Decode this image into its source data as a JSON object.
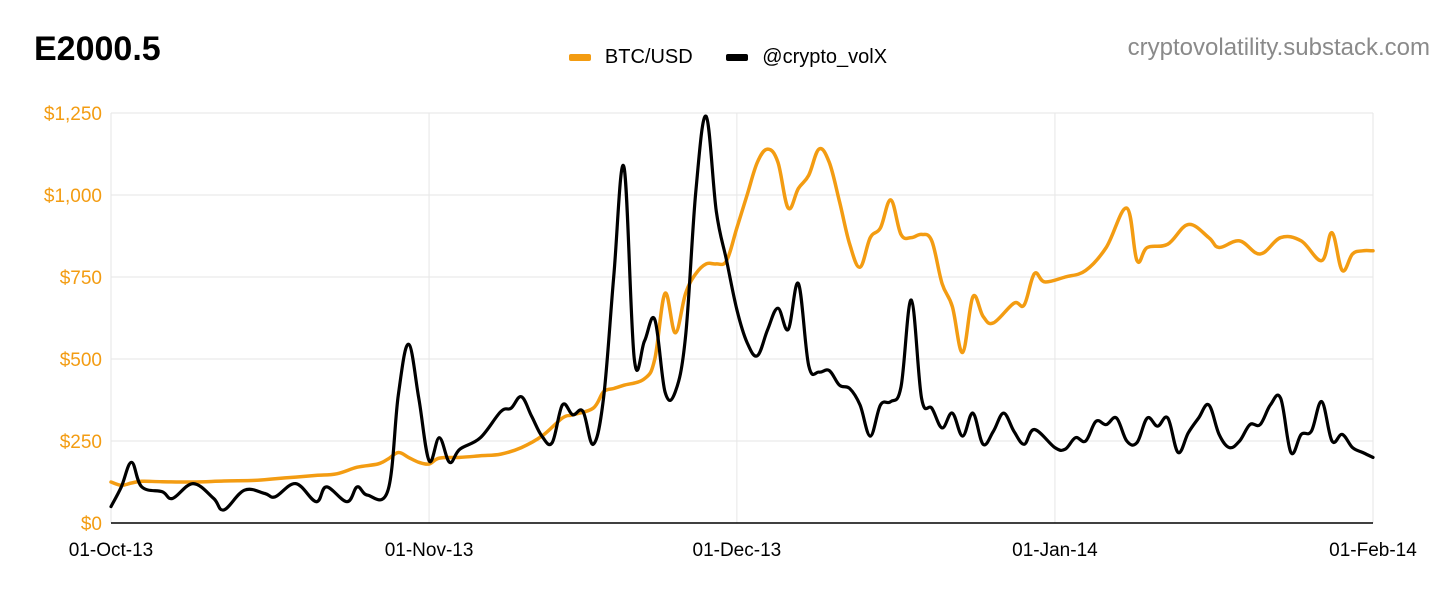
{
  "header": {
    "title": "E2000.5",
    "watermark": "cryptovolatility.substack.com"
  },
  "colors": {
    "btc": "#f39c12",
    "vol": "#000000",
    "grid": "#e6e6e6",
    "ytick": "#f39c12"
  },
  "chart_data": {
    "type": "line",
    "title": "E2000.5",
    "x_start": "2013-10-01",
    "x_end": "2014-02-01",
    "ylim": [
      0,
      1250
    ],
    "yticks": [
      0,
      250,
      500,
      750,
      1000,
      1250
    ],
    "ytick_labels": [
      "$0",
      "$250",
      "$500",
      "$750",
      "$1,000",
      "$1,250"
    ],
    "xtick_dates": [
      "2013-10-01",
      "2013-11-01",
      "2013-12-01",
      "2014-01-01",
      "2014-02-01"
    ],
    "xtick_labels": [
      "01-Oct-13",
      "01-Nov-13",
      "01-Dec-13",
      "01-Jan-14",
      "01-Feb-14"
    ],
    "grid": true,
    "legend_position": "top-center",
    "series": [
      {
        "name": "BTC/USD",
        "color": "#f39c12",
        "points": [
          [
            "2013-10-01",
            125
          ],
          [
            "2013-10-02",
            115
          ],
          [
            "2013-10-03",
            122
          ],
          [
            "2013-10-04",
            127
          ],
          [
            "2013-10-06",
            126
          ],
          [
            "2013-10-09",
            125
          ],
          [
            "2013-10-12",
            128
          ],
          [
            "2013-10-15",
            130
          ],
          [
            "2013-10-17",
            135
          ],
          [
            "2013-10-19",
            140
          ],
          [
            "2013-10-21",
            145
          ],
          [
            "2013-10-23",
            150
          ],
          [
            "2013-10-25",
            170
          ],
          [
            "2013-10-27",
            180
          ],
          [
            "2013-10-28",
            195
          ],
          [
            "2013-10-29",
            215
          ],
          [
            "2013-10-30",
            200
          ],
          [
            "2013-10-31",
            185
          ],
          [
            "2013-11-01",
            180
          ],
          [
            "2013-11-02",
            198
          ],
          [
            "2013-11-04",
            200
          ],
          [
            "2013-11-06",
            205
          ],
          [
            "2013-11-08",
            210
          ],
          [
            "2013-11-10",
            230
          ],
          [
            "2013-11-12",
            265
          ],
          [
            "2013-11-14",
            320
          ],
          [
            "2013-11-15",
            330
          ],
          [
            "2013-11-17",
            350
          ],
          [
            "2013-11-18",
            400
          ],
          [
            "2013-11-19",
            410
          ],
          [
            "2013-11-20",
            420
          ],
          [
            "2013-11-22",
            440
          ],
          [
            "2013-11-23",
            500
          ],
          [
            "2013-11-24",
            700
          ],
          [
            "2013-11-25",
            580
          ],
          [
            "2013-11-26",
            700
          ],
          [
            "2013-11-27",
            760
          ],
          [
            "2013-11-28",
            790
          ],
          [
            "2013-11-29",
            790
          ],
          [
            "2013-11-30",
            800
          ],
          [
            "2013-12-01",
            900
          ],
          [
            "2013-12-02",
            1000
          ],
          [
            "2013-12-03",
            1100
          ],
          [
            "2013-12-04",
            1140
          ],
          [
            "2013-12-05",
            1100
          ],
          [
            "2013-12-06",
            960
          ],
          [
            "2013-12-07",
            1020
          ],
          [
            "2013-12-08",
            1060
          ],
          [
            "2013-12-09",
            1140
          ],
          [
            "2013-12-10",
            1100
          ],
          [
            "2013-12-11",
            980
          ],
          [
            "2013-12-12",
            850
          ],
          [
            "2013-12-13",
            780
          ],
          [
            "2013-12-14",
            870
          ],
          [
            "2013-12-15",
            900
          ],
          [
            "2013-12-16",
            985
          ],
          [
            "2013-12-17",
            880
          ],
          [
            "2013-12-18",
            870
          ],
          [
            "2013-12-19",
            880
          ],
          [
            "2013-12-20",
            860
          ],
          [
            "2013-12-21",
            730
          ],
          [
            "2013-12-22",
            660
          ],
          [
            "2013-12-23",
            520
          ],
          [
            "2013-12-24",
            690
          ],
          [
            "2013-12-25",
            630
          ],
          [
            "2013-12-26",
            610
          ],
          [
            "2013-12-28",
            670
          ],
          [
            "2013-12-29",
            665
          ],
          [
            "2013-12-30",
            760
          ],
          [
            "2013-12-31",
            735
          ],
          [
            "2014-01-02",
            750
          ],
          [
            "2014-01-04",
            770
          ],
          [
            "2014-01-06",
            840
          ],
          [
            "2014-01-08",
            960
          ],
          [
            "2014-01-09",
            800
          ],
          [
            "2014-01-10",
            840
          ],
          [
            "2014-01-12",
            850
          ],
          [
            "2014-01-14",
            910
          ],
          [
            "2014-01-16",
            870
          ],
          [
            "2014-01-17",
            840
          ],
          [
            "2014-01-19",
            860
          ],
          [
            "2014-01-21",
            820
          ],
          [
            "2014-01-23",
            870
          ],
          [
            "2014-01-25",
            860
          ],
          [
            "2014-01-27",
            800
          ],
          [
            "2014-01-28",
            885
          ],
          [
            "2014-01-29",
            770
          ],
          [
            "2014-01-30",
            820
          ],
          [
            "2014-01-31",
            830
          ],
          [
            "2014-02-01",
            830
          ]
        ]
      },
      {
        "name": "@crypto_volX",
        "color": "#000000",
        "points": [
          [
            "2013-10-01",
            50
          ],
          [
            "2013-10-02",
            110
          ],
          [
            "2013-10-03",
            185
          ],
          [
            "2013-10-04",
            110
          ],
          [
            "2013-10-06",
            95
          ],
          [
            "2013-10-07",
            75
          ],
          [
            "2013-10-09",
            120
          ],
          [
            "2013-10-11",
            75
          ],
          [
            "2013-10-12",
            40
          ],
          [
            "2013-10-14",
            100
          ],
          [
            "2013-10-16",
            90
          ],
          [
            "2013-10-17",
            80
          ],
          [
            "2013-10-19",
            120
          ],
          [
            "2013-10-21",
            65
          ],
          [
            "2013-10-22",
            110
          ],
          [
            "2013-10-24",
            65
          ],
          [
            "2013-10-25",
            110
          ],
          [
            "2013-10-26",
            85
          ],
          [
            "2013-10-28",
            100
          ],
          [
            "2013-10-29",
            390
          ],
          [
            "2013-10-30",
            545
          ],
          [
            "2013-10-31",
            380
          ],
          [
            "2013-11-01",
            190
          ],
          [
            "2013-11-02",
            260
          ],
          [
            "2013-11-03",
            185
          ],
          [
            "2013-11-04",
            225
          ],
          [
            "2013-11-06",
            260
          ],
          [
            "2013-11-08",
            340
          ],
          [
            "2013-11-09",
            350
          ],
          [
            "2013-11-10",
            385
          ],
          [
            "2013-11-11",
            325
          ],
          [
            "2013-11-12",
            265
          ],
          [
            "2013-11-13",
            245
          ],
          [
            "2013-11-14",
            360
          ],
          [
            "2013-11-15",
            330
          ],
          [
            "2013-11-16",
            340
          ],
          [
            "2013-11-17",
            240
          ],
          [
            "2013-11-18",
            380
          ],
          [
            "2013-11-19",
            750
          ],
          [
            "2013-11-20",
            1085
          ],
          [
            "2013-11-21",
            500
          ],
          [
            "2013-11-22",
            555
          ],
          [
            "2013-11-23",
            620
          ],
          [
            "2013-11-24",
            400
          ],
          [
            "2013-11-25",
            400
          ],
          [
            "2013-11-26",
            570
          ],
          [
            "2013-11-27",
            1010
          ],
          [
            "2013-11-28",
            1240
          ],
          [
            "2013-11-29",
            950
          ],
          [
            "2013-11-30",
            800
          ],
          [
            "2013-12-01",
            650
          ],
          [
            "2013-12-02",
            550
          ],
          [
            "2013-12-03",
            510
          ],
          [
            "2013-12-04",
            590
          ],
          [
            "2013-12-05",
            655
          ],
          [
            "2013-12-06",
            590
          ],
          [
            "2013-12-07",
            730
          ],
          [
            "2013-12-08",
            480
          ],
          [
            "2013-12-09",
            460
          ],
          [
            "2013-12-10",
            465
          ],
          [
            "2013-12-11",
            420
          ],
          [
            "2013-12-12",
            410
          ],
          [
            "2013-12-13",
            360
          ],
          [
            "2013-12-14",
            265
          ],
          [
            "2013-12-15",
            360
          ],
          [
            "2013-12-16",
            370
          ],
          [
            "2013-12-17",
            415
          ],
          [
            "2013-12-18",
            680
          ],
          [
            "2013-12-19",
            380
          ],
          [
            "2013-12-20",
            350
          ],
          [
            "2013-12-21",
            290
          ],
          [
            "2013-12-22",
            335
          ],
          [
            "2013-12-23",
            265
          ],
          [
            "2013-12-24",
            335
          ],
          [
            "2013-12-25",
            240
          ],
          [
            "2013-12-26",
            280
          ],
          [
            "2013-12-27",
            335
          ],
          [
            "2013-12-28",
            280
          ],
          [
            "2013-12-29",
            240
          ],
          [
            "2013-12-30",
            285
          ],
          [
            "2014-01-01",
            230
          ],
          [
            "2014-01-02",
            225
          ],
          [
            "2014-01-03",
            260
          ],
          [
            "2014-01-04",
            250
          ],
          [
            "2014-01-05",
            310
          ],
          [
            "2014-01-06",
            300
          ],
          [
            "2014-01-07",
            320
          ],
          [
            "2014-01-08",
            250
          ],
          [
            "2014-01-09",
            245
          ],
          [
            "2014-01-10",
            320
          ],
          [
            "2014-01-11",
            295
          ],
          [
            "2014-01-12",
            320
          ],
          [
            "2014-01-13",
            215
          ],
          [
            "2014-01-14",
            275
          ],
          [
            "2014-01-15",
            320
          ],
          [
            "2014-01-16",
            360
          ],
          [
            "2014-01-17",
            270
          ],
          [
            "2014-01-18",
            230
          ],
          [
            "2014-01-19",
            250
          ],
          [
            "2014-01-20",
            300
          ],
          [
            "2014-01-21",
            300
          ],
          [
            "2014-01-22",
            360
          ],
          [
            "2014-01-23",
            380
          ],
          [
            "2014-01-24",
            215
          ],
          [
            "2014-01-25",
            270
          ],
          [
            "2014-01-26",
            280
          ],
          [
            "2014-01-27",
            370
          ],
          [
            "2014-01-28",
            250
          ],
          [
            "2014-01-29",
            270
          ],
          [
            "2014-01-30",
            230
          ],
          [
            "2014-01-31",
            215
          ],
          [
            "2014-02-01",
            200
          ]
        ]
      }
    ]
  }
}
